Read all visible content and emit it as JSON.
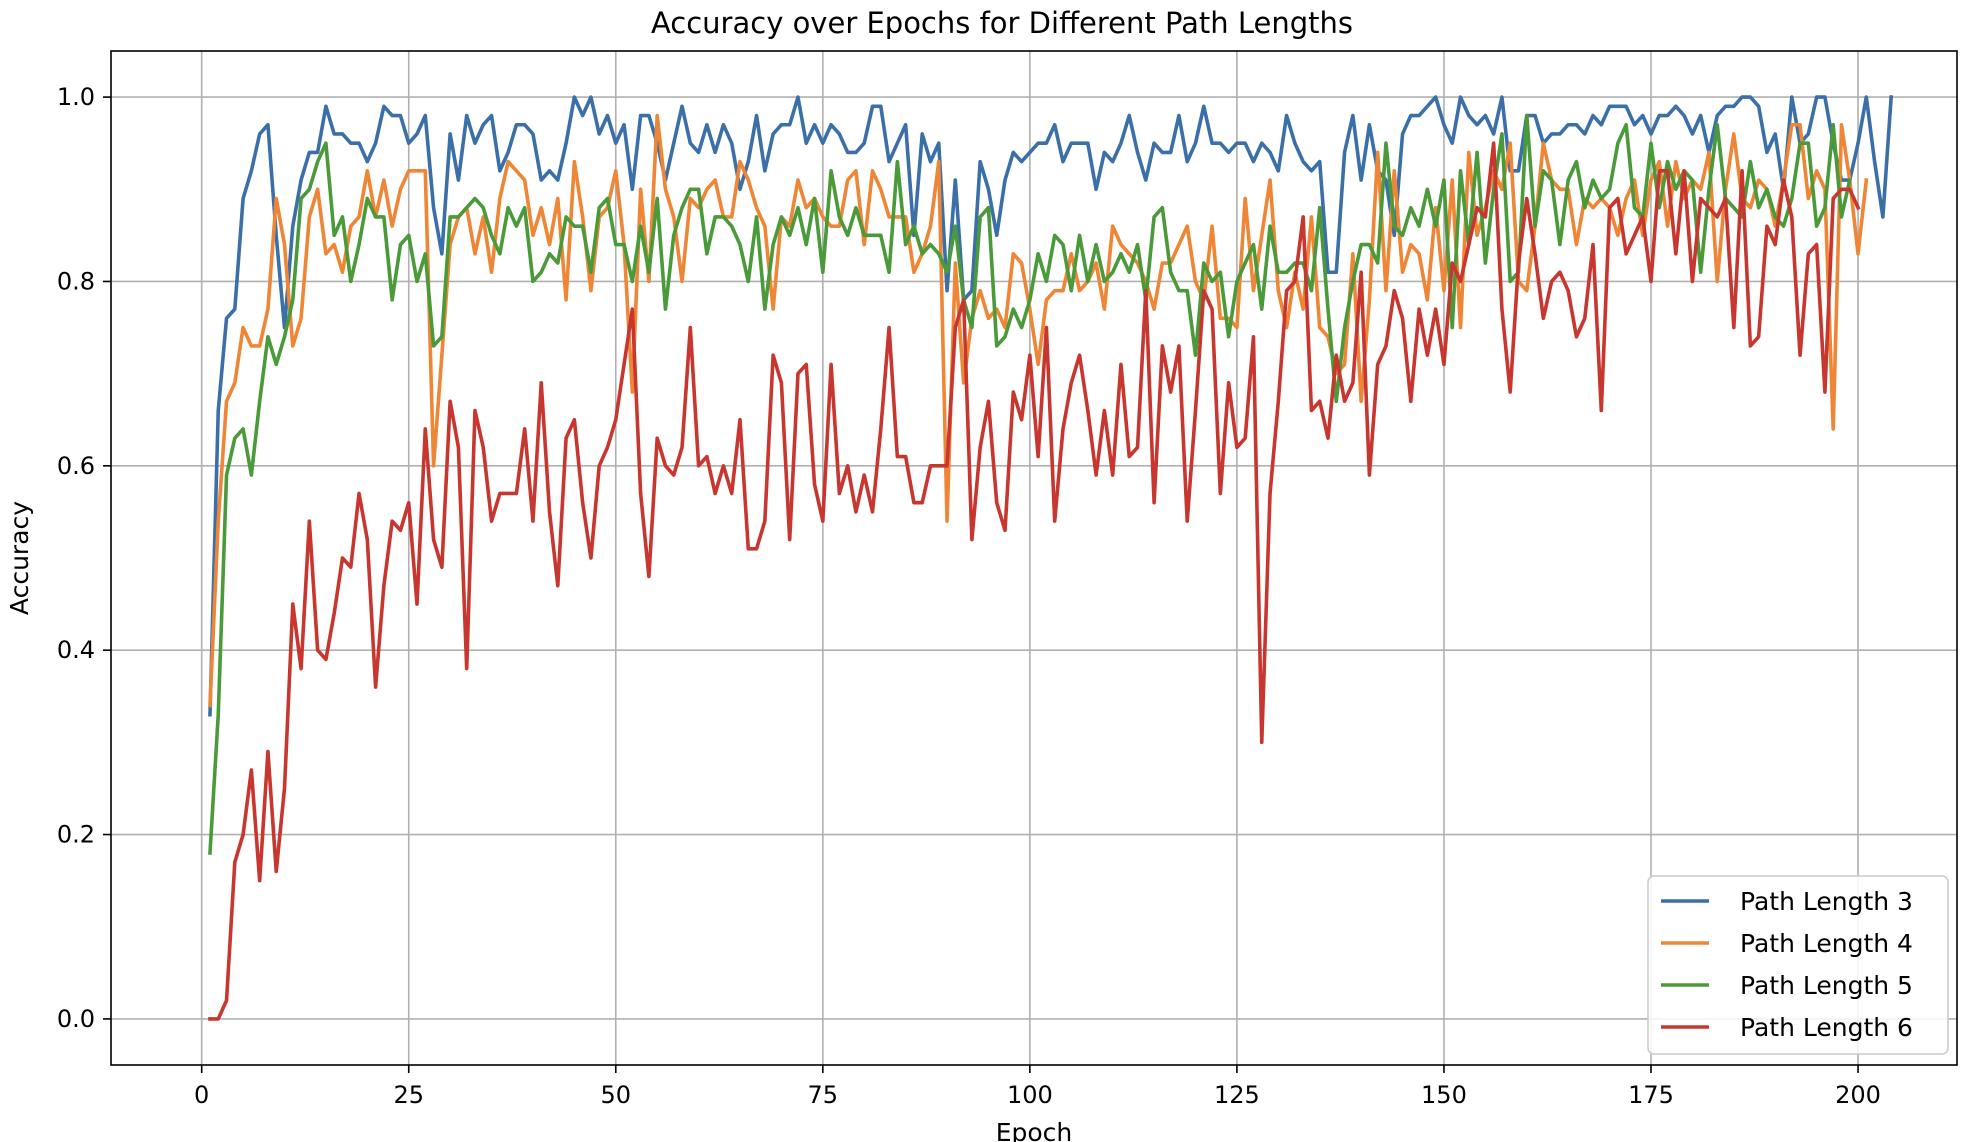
{
  "chart_data": {
    "type": "line",
    "title": "Accuracy over Epochs for Different Path Lengths",
    "xlabel": "Epoch",
    "ylabel": "Accuracy",
    "xlim": [
      -10.95,
      211.95
    ],
    "ylim": [
      -0.05,
      1.05
    ],
    "x_ticks": [
      0,
      25,
      50,
      75,
      100,
      125,
      150,
      175,
      200
    ],
    "y_ticks": [
      0.0,
      0.2,
      0.4,
      0.6,
      0.8,
      1.0
    ],
    "x_tick_labels": [
      "0",
      "25",
      "50",
      "75",
      "100",
      "125",
      "150",
      "175",
      "200"
    ],
    "y_tick_labels": [
      "0.0",
      "0.2",
      "0.4",
      "0.6",
      "0.8",
      "1.0"
    ],
    "grid": true,
    "legend_position": "bottom-right",
    "x_start": 1,
    "x_step": 1,
    "series": [
      {
        "name": "Path Length 3",
        "color": "#3a6fa8",
        "values": [
          0.33,
          0.66,
          0.76,
          0.77,
          0.89,
          0.92,
          0.96,
          0.97,
          0.85,
          0.75,
          0.86,
          0.91,
          0.94,
          0.94,
          0.99,
          0.96,
          0.96,
          0.95,
          0.95,
          0.93,
          0.95,
          0.99,
          0.98,
          0.98,
          0.95,
          0.96,
          0.98,
          0.88,
          0.83,
          0.96,
          0.91,
          0.98,
          0.95,
          0.97,
          0.98,
          0.92,
          0.94,
          0.97,
          0.97,
          0.96,
          0.91,
          0.92,
          0.91,
          0.95,
          1.0,
          0.98,
          1.0,
          0.96,
          0.98,
          0.95,
          0.97,
          0.9,
          0.98,
          0.98,
          0.95,
          0.91,
          0.95,
          0.99,
          0.95,
          0.94,
          0.97,
          0.94,
          0.97,
          0.95,
          0.9,
          0.93,
          0.98,
          0.92,
          0.96,
          0.97,
          0.97,
          1.0,
          0.95,
          0.97,
          0.95,
          0.97,
          0.96,
          0.94,
          0.94,
          0.95,
          0.99,
          0.99,
          0.93,
          0.95,
          0.97,
          0.85,
          0.96,
          0.93,
          0.95,
          0.79,
          0.91,
          0.78,
          0.79,
          0.93,
          0.9,
          0.85,
          0.91,
          0.94,
          0.93,
          0.94,
          0.95,
          0.95,
          0.97,
          0.93,
          0.95,
          0.95,
          0.95,
          0.9,
          0.94,
          0.93,
          0.95,
          0.98,
          0.94,
          0.91,
          0.95,
          0.94,
          0.94,
          0.98,
          0.93,
          0.95,
          0.99,
          0.95,
          0.95,
          0.94,
          0.95,
          0.95,
          0.93,
          0.95,
          0.94,
          0.92,
          0.98,
          0.95,
          0.93,
          0.92,
          0.93,
          0.81,
          0.81,
          0.94,
          0.98,
          0.91,
          0.97,
          0.92,
          0.91,
          0.85,
          0.96,
          0.98,
          0.98,
          0.99,
          1.0,
          0.97,
          0.95,
          1.0,
          0.98,
          0.97,
          0.98,
          0.96,
          1.0,
          0.92,
          0.92,
          0.98,
          0.98,
          0.95,
          0.96,
          0.96,
          0.97,
          0.97,
          0.96,
          0.98,
          0.97,
          0.99,
          0.99,
          0.99,
          0.97,
          0.98,
          0.96,
          0.98,
          0.98,
          0.99,
          0.98,
          0.96,
          0.98,
          0.94,
          0.98,
          0.99,
          0.99,
          1.0,
          1.0,
          0.99,
          0.94,
          0.96,
          0.9,
          1.0,
          0.95,
          0.96,
          1.0,
          1.0,
          0.95,
          0.91,
          0.91,
          0.95,
          1.0,
          0.93,
          0.87,
          1.0
        ]
      },
      {
        "name": "Path Length 4",
        "color": "#ef8636",
        "values": [
          0.34,
          0.54,
          0.67,
          0.69,
          0.75,
          0.73,
          0.73,
          0.77,
          0.89,
          0.84,
          0.73,
          0.76,
          0.87,
          0.9,
          0.83,
          0.84,
          0.81,
          0.86,
          0.87,
          0.92,
          0.87,
          0.91,
          0.86,
          0.9,
          0.92,
          0.92,
          0.92,
          0.6,
          0.72,
          0.84,
          0.87,
          0.88,
          0.83,
          0.87,
          0.81,
          0.89,
          0.93,
          0.92,
          0.91,
          0.85,
          0.88,
          0.84,
          0.89,
          0.78,
          0.93,
          0.87,
          0.79,
          0.87,
          0.88,
          0.92,
          0.84,
          0.68,
          0.9,
          0.8,
          0.98,
          0.9,
          0.87,
          0.8,
          0.89,
          0.88,
          0.9,
          0.91,
          0.87,
          0.87,
          0.93,
          0.91,
          0.88,
          0.86,
          0.77,
          0.87,
          0.86,
          0.91,
          0.88,
          0.89,
          0.87,
          0.86,
          0.86,
          0.91,
          0.92,
          0.84,
          0.92,
          0.9,
          0.87,
          0.87,
          0.87,
          0.81,
          0.83,
          0.86,
          0.93,
          0.54,
          0.82,
          0.69,
          0.76,
          0.79,
          0.76,
          0.77,
          0.75,
          0.83,
          0.82,
          0.77,
          0.71,
          0.78,
          0.79,
          0.79,
          0.83,
          0.79,
          0.8,
          0.82,
          0.77,
          0.86,
          0.84,
          0.83,
          0.82,
          0.8,
          0.77,
          0.82,
          0.82,
          0.84,
          0.86,
          0.8,
          0.78,
          0.86,
          0.76,
          0.76,
          0.75,
          0.89,
          0.79,
          0.85,
          0.91,
          0.79,
          0.75,
          0.81,
          0.77,
          0.87,
          0.75,
          0.74,
          0.7,
          0.71,
          0.83,
          0.67,
          0.78,
          0.94,
          0.79,
          0.92,
          0.81,
          0.84,
          0.83,
          0.78,
          0.88,
          0.79,
          0.91,
          0.75,
          0.94,
          0.85,
          0.88,
          0.92,
          0.9,
          0.95,
          0.8,
          0.79,
          0.86,
          0.95,
          0.91,
          0.9,
          0.9,
          0.84,
          0.89,
          0.88,
          0.89,
          0.88,
          0.85,
          0.89,
          0.91,
          0.85,
          0.91,
          0.93,
          0.86,
          0.93,
          0.89,
          0.91,
          0.9,
          0.94,
          0.8,
          0.9,
          0.96,
          0.89,
          0.88,
          0.91,
          0.9,
          0.86,
          0.91,
          0.97,
          0.97,
          0.89,
          0.92,
          0.9,
          0.64,
          0.97,
          0.91,
          0.83,
          0.91
        ]
      },
      {
        "name": "Path Length 5",
        "color": "#4a9a3a",
        "values": [
          0.18,
          0.33,
          0.59,
          0.63,
          0.64,
          0.59,
          0.67,
          0.74,
          0.71,
          0.74,
          0.78,
          0.89,
          0.9,
          0.93,
          0.95,
          0.85,
          0.87,
          0.8,
          0.84,
          0.89,
          0.87,
          0.87,
          0.78,
          0.84,
          0.85,
          0.8,
          0.83,
          0.73,
          0.74,
          0.87,
          0.87,
          0.88,
          0.89,
          0.88,
          0.85,
          0.83,
          0.88,
          0.86,
          0.88,
          0.8,
          0.81,
          0.83,
          0.82,
          0.87,
          0.86,
          0.86,
          0.81,
          0.88,
          0.89,
          0.84,
          0.84,
          0.8,
          0.86,
          0.81,
          0.89,
          0.77,
          0.85,
          0.88,
          0.9,
          0.9,
          0.83,
          0.87,
          0.87,
          0.86,
          0.84,
          0.8,
          0.87,
          0.77,
          0.84,
          0.87,
          0.85,
          0.88,
          0.84,
          0.89,
          0.81,
          0.92,
          0.87,
          0.85,
          0.88,
          0.85,
          0.85,
          0.85,
          0.81,
          0.93,
          0.84,
          0.86,
          0.83,
          0.84,
          0.83,
          0.81,
          0.86,
          0.78,
          0.75,
          0.87,
          0.88,
          0.73,
          0.74,
          0.77,
          0.75,
          0.78,
          0.83,
          0.8,
          0.85,
          0.84,
          0.79,
          0.85,
          0.8,
          0.84,
          0.8,
          0.81,
          0.83,
          0.81,
          0.84,
          0.78,
          0.87,
          0.88,
          0.81,
          0.79,
          0.79,
          0.72,
          0.82,
          0.8,
          0.81,
          0.74,
          0.8,
          0.82,
          0.84,
          0.77,
          0.86,
          0.81,
          0.81,
          0.82,
          0.82,
          0.79,
          0.88,
          0.77,
          0.67,
          0.75,
          0.8,
          0.84,
          0.84,
          0.82,
          0.95,
          0.86,
          0.85,
          0.88,
          0.86,
          0.9,
          0.86,
          0.91,
          0.75,
          0.92,
          0.84,
          0.94,
          0.82,
          0.9,
          0.96,
          0.8,
          0.81,
          0.98,
          0.86,
          0.92,
          0.91,
          0.84,
          0.91,
          0.93,
          0.88,
          0.91,
          0.89,
          0.9,
          0.95,
          0.97,
          0.88,
          0.87,
          0.95,
          0.88,
          0.93,
          0.9,
          0.92,
          0.91,
          0.81,
          0.9,
          0.97,
          0.89,
          0.88,
          0.87,
          0.93,
          0.88,
          0.9,
          0.87,
          0.86,
          0.89,
          0.95,
          0.95,
          0.86,
          0.88,
          0.97,
          0.87,
          0.91
        ]
      },
      {
        "name": "Path Length 6",
        "color": "#c8372f",
        "values": [
          0.0,
          0.0,
          0.02,
          0.17,
          0.2,
          0.27,
          0.15,
          0.29,
          0.16,
          0.25,
          0.45,
          0.38,
          0.54,
          0.4,
          0.39,
          0.44,
          0.5,
          0.49,
          0.57,
          0.52,
          0.36,
          0.47,
          0.54,
          0.53,
          0.56,
          0.45,
          0.64,
          0.52,
          0.49,
          0.67,
          0.62,
          0.38,
          0.66,
          0.62,
          0.54,
          0.57,
          0.57,
          0.57,
          0.64,
          0.54,
          0.69,
          0.55,
          0.47,
          0.63,
          0.65,
          0.56,
          0.5,
          0.6,
          0.62,
          0.65,
          0.71,
          0.77,
          0.57,
          0.48,
          0.63,
          0.6,
          0.59,
          0.62,
          0.75,
          0.6,
          0.61,
          0.57,
          0.6,
          0.57,
          0.65,
          0.51,
          0.51,
          0.54,
          0.72,
          0.69,
          0.52,
          0.7,
          0.71,
          0.58,
          0.54,
          0.71,
          0.57,
          0.6,
          0.55,
          0.59,
          0.55,
          0.64,
          0.75,
          0.61,
          0.61,
          0.56,
          0.56,
          0.6,
          0.6,
          0.6,
          0.75,
          0.78,
          0.52,
          0.62,
          0.67,
          0.56,
          0.53,
          0.68,
          0.65,
          0.72,
          0.61,
          0.75,
          0.54,
          0.64,
          0.69,
          0.72,
          0.66,
          0.59,
          0.66,
          0.59,
          0.71,
          0.61,
          0.62,
          0.79,
          0.56,
          0.73,
          0.68,
          0.73,
          0.54,
          0.66,
          0.79,
          0.77,
          0.57,
          0.69,
          0.62,
          0.63,
          0.74,
          0.3,
          0.57,
          0.67,
          0.79,
          0.8,
          0.87,
          0.66,
          0.67,
          0.63,
          0.72,
          0.67,
          0.69,
          0.81,
          0.59,
          0.71,
          0.73,
          0.79,
          0.76,
          0.67,
          0.77,
          0.72,
          0.77,
          0.71,
          0.82,
          0.8,
          0.84,
          0.88,
          0.87,
          0.95,
          0.77,
          0.68,
          0.82,
          0.89,
          0.83,
          0.76,
          0.8,
          0.81,
          0.79,
          0.74,
          0.76,
          0.84,
          0.66,
          0.88,
          0.89,
          0.83,
          0.85,
          0.87,
          0.8,
          0.92,
          0.92,
          0.83,
          0.92,
          0.8,
          0.89,
          0.88,
          0.87,
          0.89,
          0.75,
          0.92,
          0.73,
          0.74,
          0.86,
          0.84,
          0.91,
          0.87,
          0.72,
          0.83,
          0.84,
          0.68,
          0.89,
          0.9,
          0.9,
          0.88
        ]
      }
    ]
  }
}
